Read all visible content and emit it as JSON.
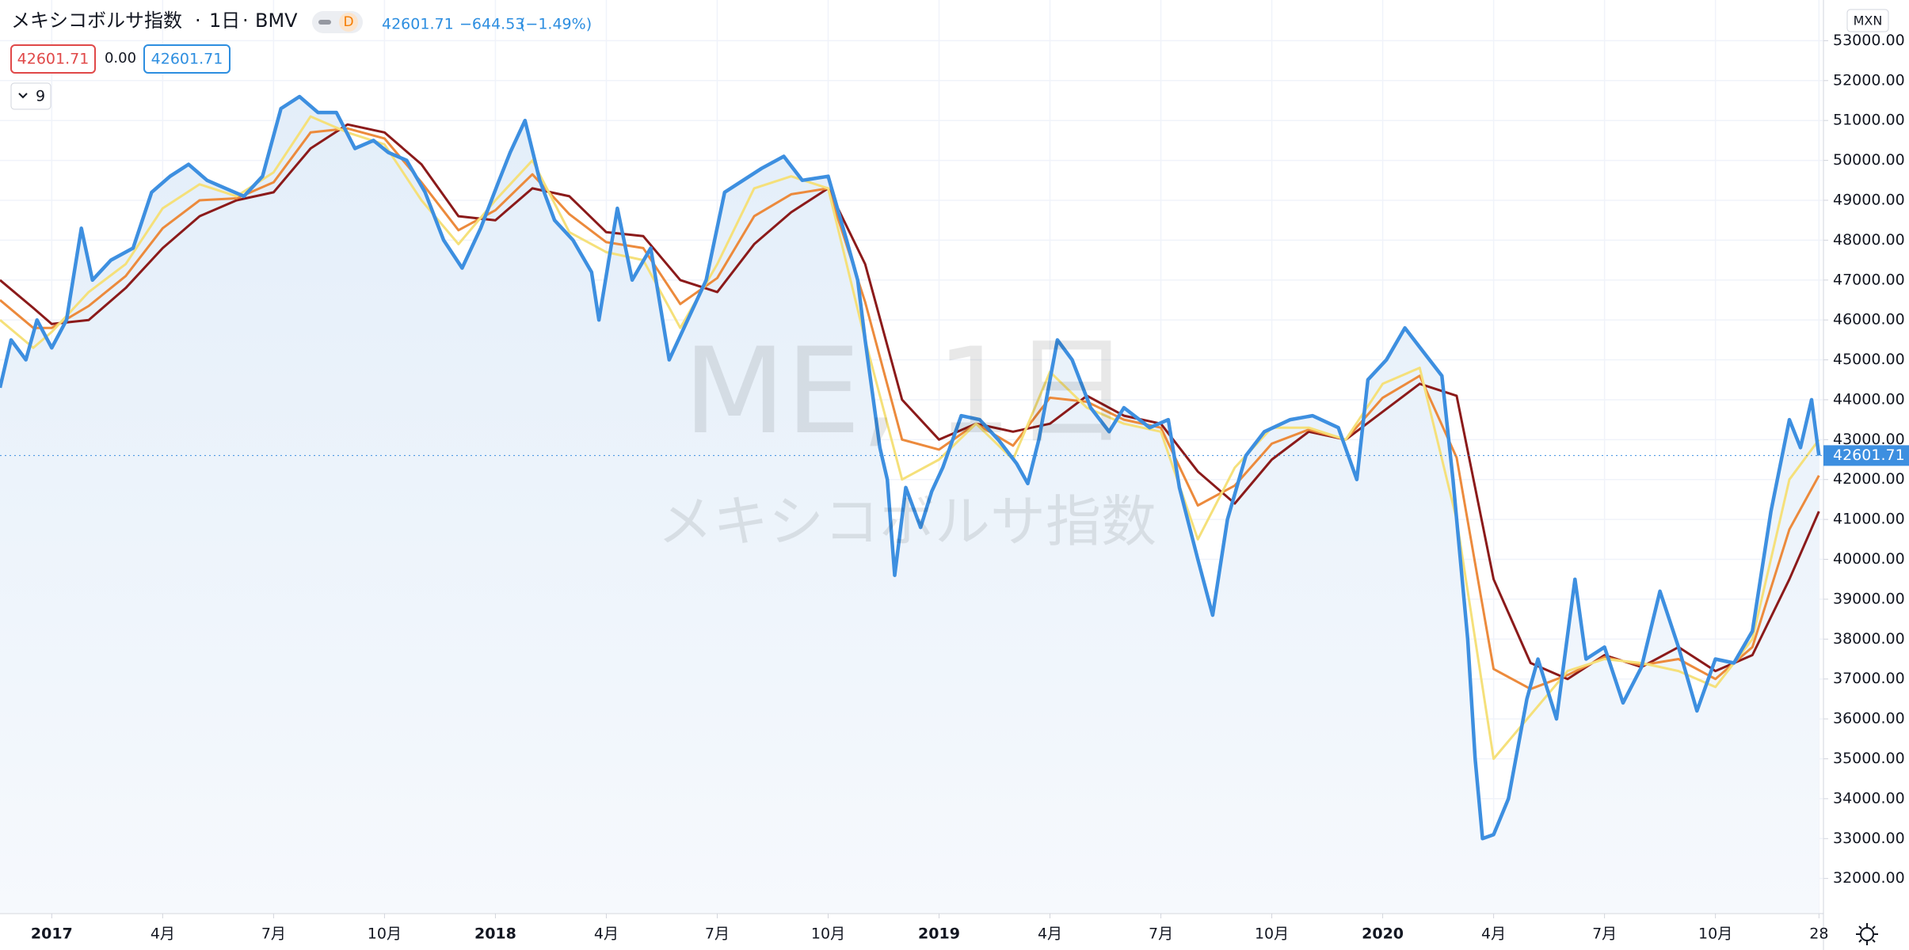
{
  "chart_data": {
    "type": "line",
    "title": "メキシコボルサ指数",
    "interval": "1日",
    "exchange": "BMV",
    "badge": "D",
    "legend": {
      "last": "42601.71",
      "change": "−644.53",
      "change_pct": "(−1.49%)"
    },
    "boxes": [
      "42601.71",
      "0.00",
      "42601.71"
    ],
    "indicator_count": "9",
    "currency": "MXN",
    "watermark": {
      "symbol": "ME, 1日",
      "name": "メキシコボルサ指数"
    },
    "xlim": [
      -1.4,
      47.9
    ],
    "ylim": [
      31140,
      54020
    ],
    "grid": true,
    "xticks": [
      {
        "value": 0,
        "label": "2017"
      },
      {
        "value": 3,
        "label": "4月"
      },
      {
        "value": 6,
        "label": "7月"
      },
      {
        "value": 9,
        "label": "10月"
      },
      {
        "value": 12,
        "label": "2018"
      },
      {
        "value": 15,
        "label": "4月"
      },
      {
        "value": 18,
        "label": "7月"
      },
      {
        "value": 21,
        "label": "10月"
      },
      {
        "value": 24,
        "label": "2019"
      },
      {
        "value": 27,
        "label": "4月"
      },
      {
        "value": 30,
        "label": "7月"
      },
      {
        "value": 33,
        "label": "10月"
      },
      {
        "value": 36,
        "label": "2020"
      },
      {
        "value": 39,
        "label": "4月"
      },
      {
        "value": 42,
        "label": "7月"
      },
      {
        "value": 45,
        "label": "10月"
      },
      {
        "value": 47.8,
        "label": "28"
      }
    ],
    "yticks": [
      {
        "value": 32000,
        "label": "32000.00"
      },
      {
        "value": 33000,
        "label": "33000.00"
      },
      {
        "value": 34000,
        "label": "34000.00"
      },
      {
        "value": 35000,
        "label": "35000.00"
      },
      {
        "value": 36000,
        "label": "36000.00"
      },
      {
        "value": 37000,
        "label": "37000.00"
      },
      {
        "value": 38000,
        "label": "38000.00"
      },
      {
        "value": 39000,
        "label": "39000.00"
      },
      {
        "value": 40000,
        "label": "40000.00"
      },
      {
        "value": 41000,
        "label": "41000.00"
      },
      {
        "value": 42000,
        "label": "42000.00"
      },
      {
        "value": 43000,
        "label": "43000.00"
      },
      {
        "value": 44000,
        "label": "44000.00"
      },
      {
        "value": 45000,
        "label": "45000.00"
      },
      {
        "value": 46000,
        "label": "46000.00"
      },
      {
        "value": 47000,
        "label": "47000.00"
      },
      {
        "value": 48000,
        "label": "48000.00"
      },
      {
        "value": 49000,
        "label": "49000.00"
      },
      {
        "value": 50000,
        "label": "50000.00"
      },
      {
        "value": 51000,
        "label": "51000.00"
      },
      {
        "value": 52000,
        "label": "52000.00"
      },
      {
        "value": 53000,
        "label": "53000.00"
      }
    ],
    "series": [
      {
        "color": "#8b1a1a",
        "x": [
          -1.4,
          -0.5,
          0,
          1,
          2,
          3,
          4,
          5,
          6,
          7,
          8,
          9,
          10,
          11,
          12,
          13,
          14,
          15,
          16,
          17,
          18,
          19,
          20,
          21,
          22,
          23,
          24,
          25,
          26,
          27,
          28,
          29,
          30,
          31,
          32,
          33,
          34,
          35,
          36,
          37,
          38,
          39,
          40,
          41,
          42,
          43,
          44,
          45,
          46,
          47,
          47.8
        ],
        "values": [
          47000,
          46300,
          45900,
          46000,
          46800,
          47800,
          48600,
          49000,
          49200,
          50300,
          50900,
          50700,
          49900,
          48600,
          48500,
          49300,
          49100,
          48200,
          48100,
          47000,
          46700,
          47900,
          48700,
          49300,
          47400,
          44000,
          43000,
          43400,
          43200,
          43400,
          44100,
          43600,
          43400,
          42200,
          41400,
          42500,
          43200,
          43000,
          43700,
          44400,
          44100,
          39500,
          37400,
          37000,
          37600,
          37300,
          37800,
          37200,
          37600,
          39500,
          41200
        ]
      },
      {
        "color": "#ec8a3c",
        "x": [
          -1.4,
          -0.5,
          0,
          1,
          2,
          3,
          4,
          5,
          6,
          7,
          8,
          9,
          10,
          11,
          12,
          13,
          14,
          15,
          16,
          17,
          18,
          19,
          20,
          21,
          22,
          23,
          24,
          25,
          26,
          27,
          28,
          29,
          30,
          31,
          32,
          33,
          34,
          35,
          36,
          37,
          38,
          39,
          40,
          41,
          42,
          43,
          44,
          45,
          46,
          47,
          47.8
        ],
        "values": [
          46500,
          45800,
          45800,
          46350,
          47100,
          48300,
          49000,
          49050,
          49450,
          50700,
          50800,
          50550,
          49450,
          48250,
          48750,
          49650,
          48650,
          47950,
          47800,
          46400,
          47050,
          48600,
          49150,
          49300,
          46450,
          43000,
          42750,
          43400,
          42850,
          44050,
          43950,
          43500,
          43300,
          41350,
          41850,
          42900,
          43250,
          43000,
          44050,
          44600,
          42550,
          37250,
          36750,
          37100,
          37550,
          37350,
          37500,
          37000,
          37800,
          40750,
          42100
        ]
      },
      {
        "color": "#f5e07a",
        "x": [
          -1.4,
          -0.5,
          0,
          1,
          2,
          3,
          4,
          5,
          6,
          7,
          8,
          9,
          10,
          11,
          12,
          13,
          14,
          15,
          16,
          17,
          18,
          19,
          20,
          21,
          22,
          23,
          24,
          25,
          26,
          27,
          28,
          29,
          30,
          31,
          32,
          33,
          34,
          35,
          36,
          37,
          38,
          39,
          40,
          41,
          42,
          43,
          44,
          45,
          46,
          47,
          47.8
        ],
        "values": [
          46000,
          45300,
          45700,
          46700,
          47400,
          48800,
          49400,
          49100,
          49700,
          51100,
          50700,
          50400,
          49000,
          47900,
          49000,
          50000,
          48200,
          47700,
          47500,
          45800,
          47400,
          49300,
          49600,
          49300,
          45500,
          42000,
          42500,
          43400,
          42500,
          44700,
          43800,
          43400,
          43200,
          40500,
          42300,
          43300,
          43300,
          43000,
          44400,
          44800,
          41000,
          35000,
          36100,
          37200,
          37500,
          37400,
          37200,
          36800,
          38000,
          42000,
          43000
        ]
      },
      {
        "color": "#3d8fe0",
        "x": [
          -1.4,
          -1.1,
          -0.7,
          -0.4,
          0,
          0.4,
          0.8,
          1.1,
          1.6,
          2.2,
          2.7,
          3.2,
          3.7,
          4.2,
          4.7,
          5.2,
          5.7,
          6.2,
          6.7,
          7.2,
          7.7,
          8.2,
          8.7,
          9.1,
          9.6,
          10.1,
          10.6,
          11.1,
          11.6,
          12.1,
          12.4,
          12.8,
          13.2,
          13.6,
          14.1,
          14.6,
          14.8,
          15.3,
          15.7,
          16.2,
          16.7,
          17.2,
          17.7,
          18.2,
          18.7,
          19.2,
          19.8,
          20.3,
          21.0,
          21.5,
          21.8,
          22.0,
          22.4,
          22.6,
          22.8,
          23.1,
          23.5,
          23.8,
          24.1,
          24.6,
          25.1,
          25.6,
          26.1,
          26.4,
          26.7,
          27.2,
          27.6,
          28.1,
          28.6,
          29.0,
          29.7,
          30.2,
          30.5,
          31.0,
          31.4,
          31.8,
          32.3,
          32.8,
          33.5,
          34.1,
          34.8,
          35.3,
          35.6,
          36.1,
          36.6,
          37.1,
          37.6,
          37.9,
          38.3,
          38.5,
          38.7,
          39.0,
          39.4,
          39.9,
          40.2,
          40.7,
          41.2,
          41.5,
          42.0,
          42.5,
          43.0,
          43.5,
          44.0,
          44.5,
          45.0,
          45.5,
          46.0,
          46.5,
          47.0,
          47.3,
          47.6,
          47.8
        ],
        "values": [
          44300,
          45500,
          45000,
          46000,
          45300,
          46000,
          48300,
          47000,
          47500,
          47800,
          49200,
          49600,
          49900,
          49500,
          49300,
          49100,
          49600,
          51300,
          51600,
          51200,
          51200,
          50300,
          50500,
          50200,
          50000,
          49200,
          48000,
          47300,
          48300,
          49500,
          50200,
          51000,
          49500,
          48500,
          48000,
          47200,
          46000,
          48800,
          47000,
          47800,
          45000,
          46000,
          47000,
          49200,
          49500,
          49800,
          50100,
          49500,
          49600,
          48000,
          47000,
          45500,
          42800,
          42000,
          39600,
          41800,
          40800,
          41700,
          42300,
          43600,
          43500,
          43000,
          42400,
          41900,
          43000,
          45500,
          45000,
          43800,
          43200,
          43800,
          43300,
          43500,
          41800,
          40000,
          38600,
          41000,
          42600,
          43200,
          43500,
          43600,
          43300,
          42000,
          44500,
          45000,
          45800,
          45200,
          44600,
          42000,
          38000,
          35000,
          33000,
          33100,
          34000,
          36500,
          37500,
          36000,
          39500,
          37500,
          37800,
          36400,
          37300,
          39200,
          37800,
          36200,
          37500,
          37400,
          38200,
          41200,
          43500,
          42800,
          44000,
          42601.71
        ]
      }
    ]
  }
}
